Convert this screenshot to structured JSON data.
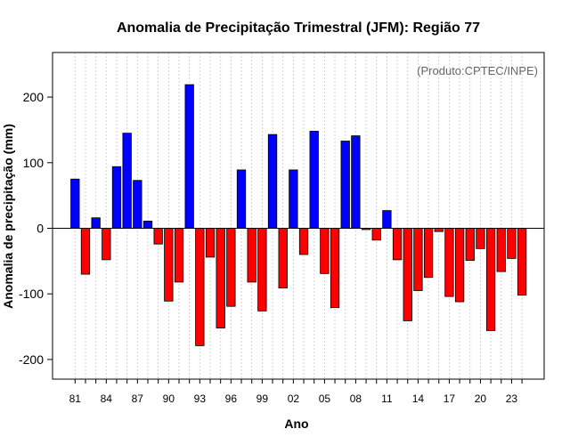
{
  "chart_data": {
    "type": "bar",
    "title": "Anomalia de Precipitação Trimestral (JFM): Região 77",
    "xlabel": "Ano",
    "ylabel": "Anomalia de precipitação (mm)",
    "credit": "(Produto:CPTEC/INPE)",
    "ylim": [
      -230,
      268
    ],
    "y_ticks": [
      -200,
      -100,
      0,
      100,
      200
    ],
    "x_tick_labels": [
      "81",
      "84",
      "87",
      "90",
      "93",
      "96",
      "99",
      "02",
      "05",
      "08",
      "11",
      "14",
      "17",
      "20",
      "23"
    ],
    "grid": "vertical dashed at each year",
    "positive_color": "#0000ff",
    "negative_color": "#ff0000",
    "categories": [
      "1981",
      "1982",
      "1983",
      "1984",
      "1985",
      "1986",
      "1987",
      "1988",
      "1989",
      "1990",
      "1991",
      "1992",
      "1993",
      "1994",
      "1995",
      "1996",
      "1997",
      "1998",
      "1999",
      "2000",
      "2001",
      "2002",
      "2003",
      "2004",
      "2005",
      "2006",
      "2007",
      "2008",
      "2009",
      "2010",
      "2011",
      "2012",
      "2013",
      "2014",
      "2015",
      "2016",
      "2017",
      "2018",
      "2019",
      "2020",
      "2021",
      "2022",
      "2023",
      "2024"
    ],
    "values": [
      75,
      -70,
      16,
      -48,
      94,
      145,
      73,
      11,
      -24,
      -111,
      -82,
      219,
      -179,
      -44,
      -152,
      -119,
      89,
      -82,
      -126,
      143,
      -91,
      89,
      -40,
      148,
      -69,
      -121,
      133,
      141,
      -2,
      -18,
      27,
      -48,
      -141,
      -95,
      -75,
      -5,
      -104,
      -112,
      -49,
      -31,
      -156,
      -66,
      -46,
      -102
    ]
  }
}
